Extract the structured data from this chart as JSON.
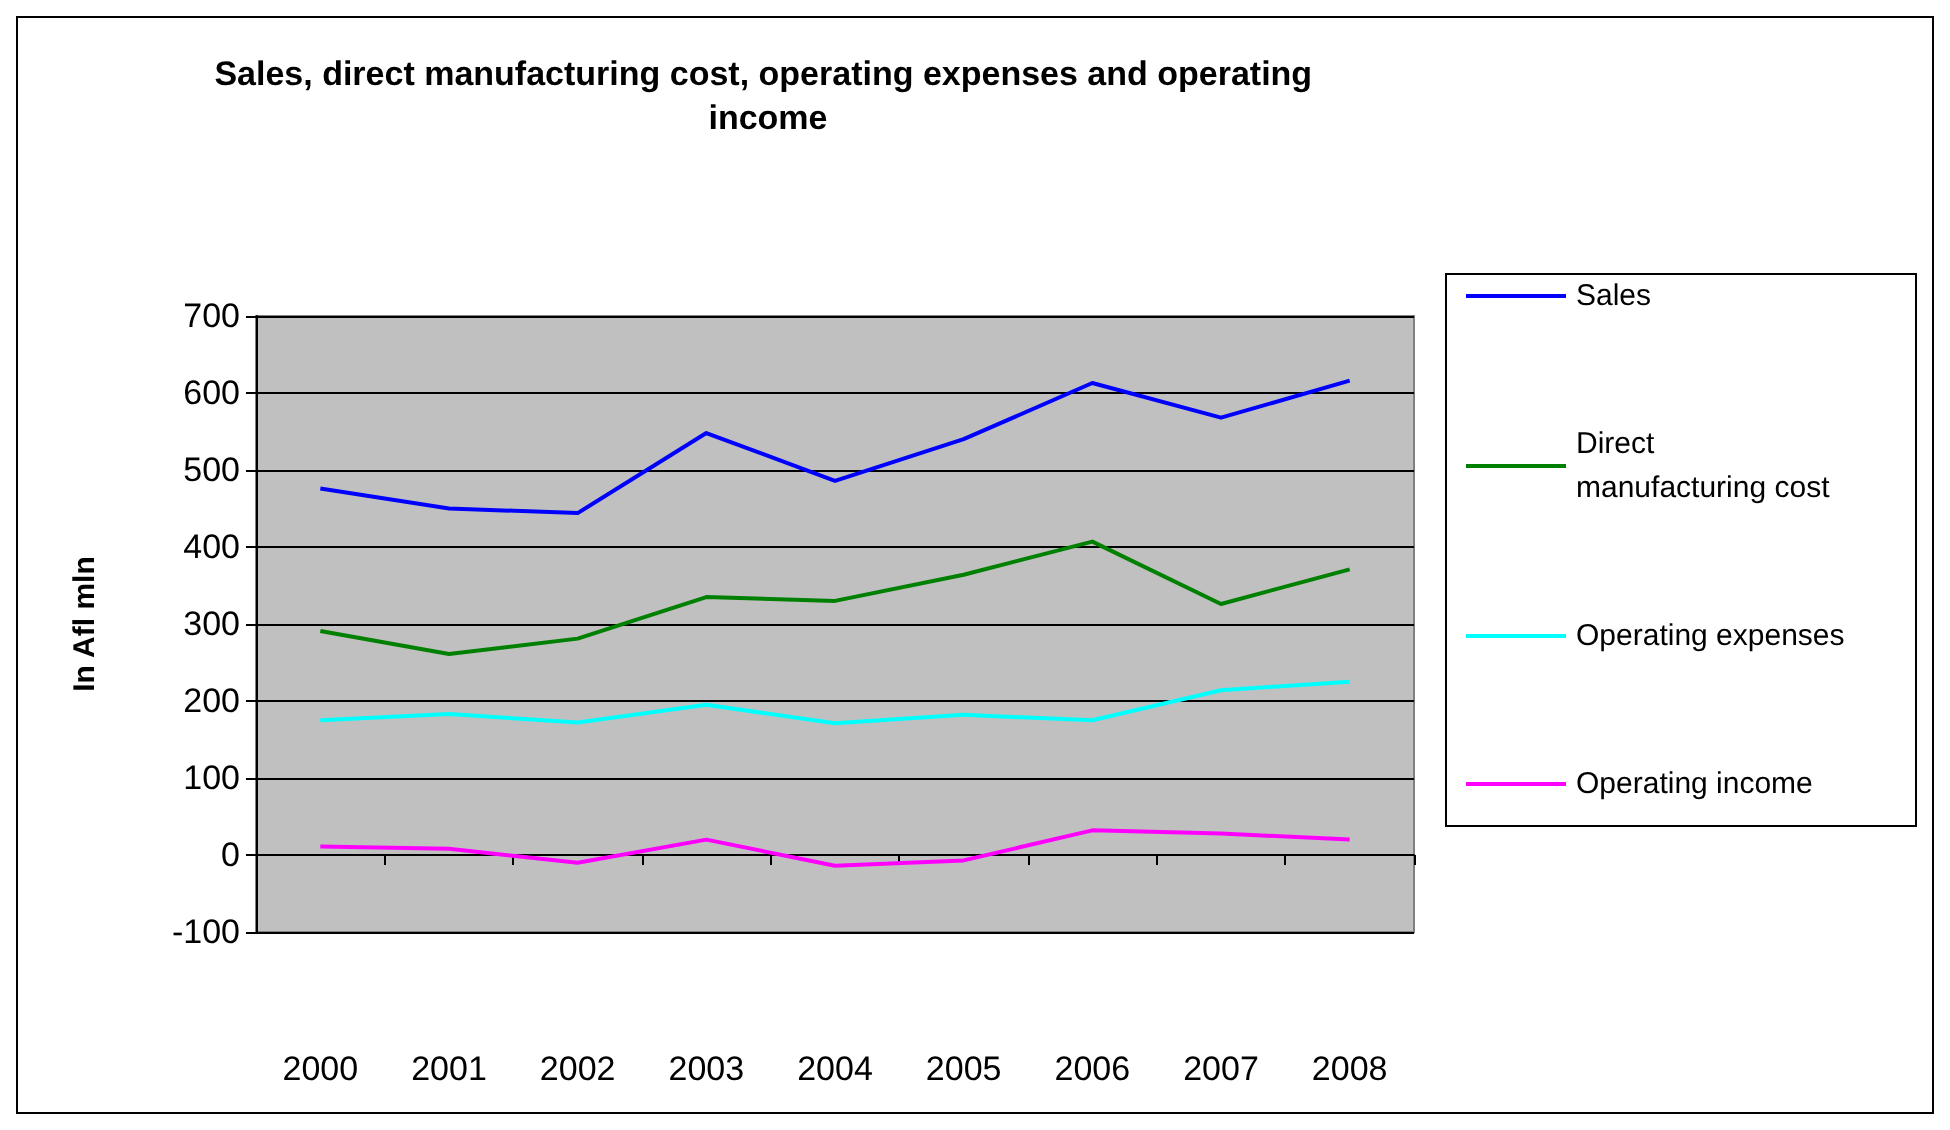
{
  "chart_data": {
    "type": "line",
    "title": "Sales, direct manufacturing cost, operating expenses and operating income",
    "ylabel": "In Afl mln",
    "categories": [
      "2000",
      "2001",
      "2002",
      "2003",
      "2004",
      "2005",
      "2006",
      "2007",
      "2008"
    ],
    "series": [
      {
        "name": "Sales",
        "color": "#0000ff",
        "values": [
          476,
          450,
          444,
          548,
          486,
          540,
          613,
          568,
          616
        ]
      },
      {
        "name": "Direct manufacturing cost",
        "color": "#008000",
        "values": [
          291,
          261,
          281,
          335,
          330,
          364,
          407,
          326,
          371
        ]
      },
      {
        "name": "Operating expenses",
        "color": "#00ffff",
        "values": [
          175,
          183,
          172,
          195,
          171,
          182,
          175,
          214,
          225
        ]
      },
      {
        "name": "Operating income",
        "color": "#ff00ff",
        "values": [
          11,
          8,
          -10,
          20,
          -14,
          -7,
          32,
          28,
          20
        ]
      }
    ],
    "ylim": [
      -100,
      700
    ],
    "yticks": [
      -100,
      0,
      100,
      200,
      300,
      400,
      500,
      600,
      700
    ],
    "grid": "y",
    "legend": "right",
    "marker": "none"
  }
}
